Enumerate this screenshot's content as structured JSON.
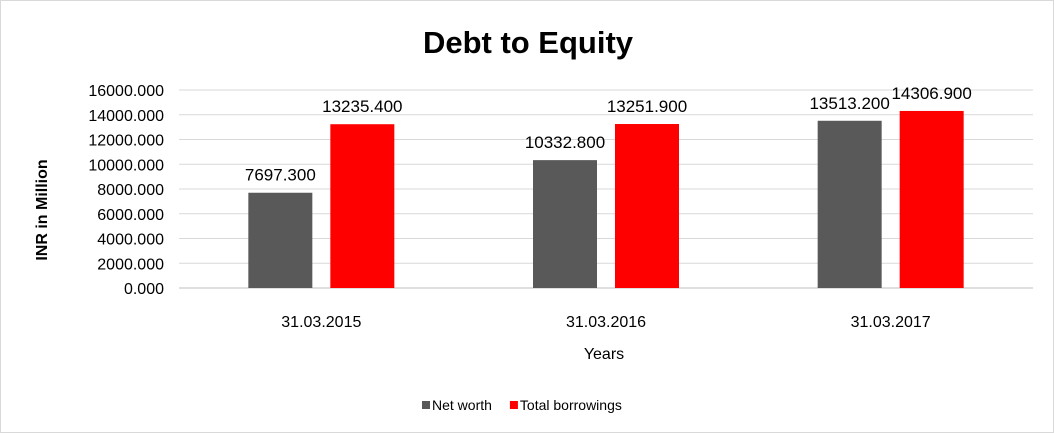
{
  "chart_data": {
    "type": "bar",
    "title": "Debt to Equity",
    "xlabel": "Years",
    "ylabel": "INR in Million",
    "categories": [
      "31.03.2015",
      "31.03.2016",
      "31.03.2017"
    ],
    "series": [
      {
        "name": "Net worth",
        "color": "#595959",
        "values": [
          7697.3,
          10332.8,
          13513.2
        ],
        "labels": [
          "7697.300",
          "10332.800",
          "13513.200"
        ]
      },
      {
        "name": "Total borrowings",
        "color": "#ff0000",
        "values": [
          13235.4,
          13251.9,
          14306.9
        ],
        "labels": [
          "13235.400",
          "13251.900",
          "14306.900"
        ]
      }
    ],
    "yticks": [
      "0.000",
      "2000.000",
      "4000.000",
      "6000.000",
      "8000.000",
      "10000.000",
      "12000.000",
      "14000.000",
      "16000.000"
    ],
    "ylim": [
      0,
      16000
    ],
    "grid": true,
    "legend_position": "bottom"
  }
}
